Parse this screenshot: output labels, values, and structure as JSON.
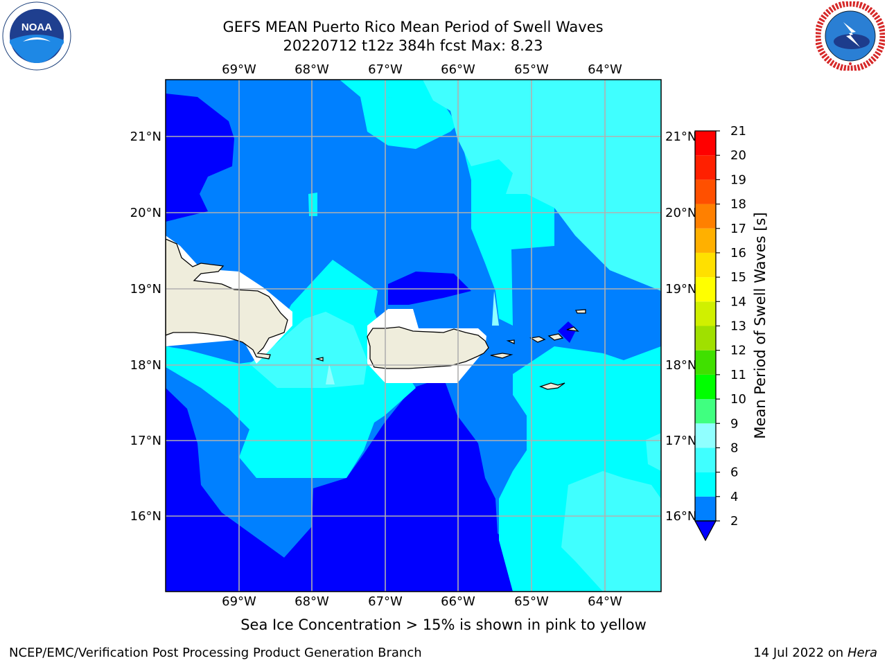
{
  "title": {
    "line1": "GEFS MEAN Puerto Rico Mean Period of Swell Waves",
    "line2": "20220712 t12z 384h fcst   Max: 8.23"
  },
  "logos": {
    "noaa": {
      "text": "NOAA",
      "ring_text": "NATIONAL OCEANIC AND ATMOSPHERIC ADMINISTRATION · U.S. DEPARTMENT OF COMMERCE"
    },
    "nws": {
      "ring_text": "NATIONAL WEATHER SERVICE"
    }
  },
  "map": {
    "lon_labels": [
      "69°W",
      "68°W",
      "67°W",
      "66°W",
      "65°W",
      "64°W"
    ],
    "lat_labels": [
      "21°N",
      "20°N",
      "19°N",
      "18°N",
      "17°N",
      "16°N"
    ],
    "gridlines": true,
    "field": "Mean Period of Swell Waves",
    "max_value": 8.23
  },
  "colorbar": {
    "label": "Mean Period of Swell Waves [s]",
    "levels": [
      "2",
      "4",
      "6",
      "8",
      "9",
      "10",
      "11",
      "12",
      "13",
      "14",
      "15",
      "16",
      "17",
      "18",
      "19",
      "20",
      "21"
    ],
    "colors": [
      "#0000ff",
      "#0080ff",
      "#00ffff",
      "#40ffff",
      "#90ffff",
      "#40ff80",
      "#00ff00",
      "#40e000",
      "#a0e000",
      "#d0f000",
      "#ffff00",
      "#ffe000",
      "#ffb000",
      "#ff8000",
      "#ff5000",
      "#ff2000",
      "#ff0000"
    ],
    "extend_below": true
  },
  "palette": {
    "c_lt2": "#0000ff",
    "c_2_4": "#0080ff",
    "c_4_6": "#00ffff",
    "c_6_8": "#40ffff",
    "c_8_9": "#90ffff",
    "land": "#efeddc"
  },
  "caption": "Sea Ice Concentration > 15% is shown in pink to yellow",
  "footer": {
    "left": "NCEP/EMC/Verification Post Processing Product Generation Branch",
    "date": "14 Jul 2022 on ",
    "machine": "Hera"
  }
}
